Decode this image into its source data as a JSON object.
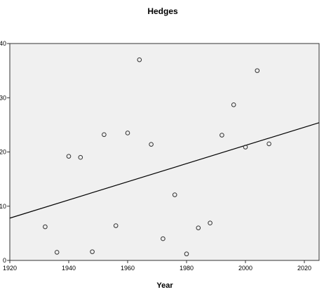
{
  "chart_data": {
    "type": "scatter",
    "title": "Hedges",
    "xlabel": "Year",
    "ylabel": "",
    "xlim": [
      1920,
      2025
    ],
    "ylim": [
      0,
      40
    ],
    "xticks": [
      "1920",
      "1940",
      "1960",
      "1980",
      "2000",
      "2020"
    ],
    "yticks": [
      "0",
      "10",
      "20",
      "30",
      "40"
    ],
    "grid": false,
    "colors": {
      "plot_background": "#f0f0f0",
      "marker_edge": "#333333",
      "fit_line": "#000000"
    },
    "series": [
      {
        "points": [
          {
            "x": 1932,
            "y": 6.2
          },
          {
            "x": 1936,
            "y": 1.5
          },
          {
            "x": 1940,
            "y": 19.2
          },
          {
            "x": 1944,
            "y": 19.0
          },
          {
            "x": 1948,
            "y": 1.6
          },
          {
            "x": 1952,
            "y": 23.2
          },
          {
            "x": 1956,
            "y": 6.4
          },
          {
            "x": 1960,
            "y": 23.5
          },
          {
            "x": 1964,
            "y": 37.0
          },
          {
            "x": 1968,
            "y": 21.4
          },
          {
            "x": 1972,
            "y": 4.0
          },
          {
            "x": 1976,
            "y": 12.1
          },
          {
            "x": 1980,
            "y": 1.2
          },
          {
            "x": 1984,
            "y": 6.0
          },
          {
            "x": 1988,
            "y": 6.9
          },
          {
            "x": 1992,
            "y": 23.1
          },
          {
            "x": 1996,
            "y": 28.7
          },
          {
            "x": 2000,
            "y": 20.9
          },
          {
            "x": 2004,
            "y": 35.0
          },
          {
            "x": 2008,
            "y": 21.5
          }
        ]
      }
    ],
    "fit_line": {
      "x": [
        1920,
        2025
      ],
      "y": [
        7.8,
        25.4
      ]
    }
  }
}
